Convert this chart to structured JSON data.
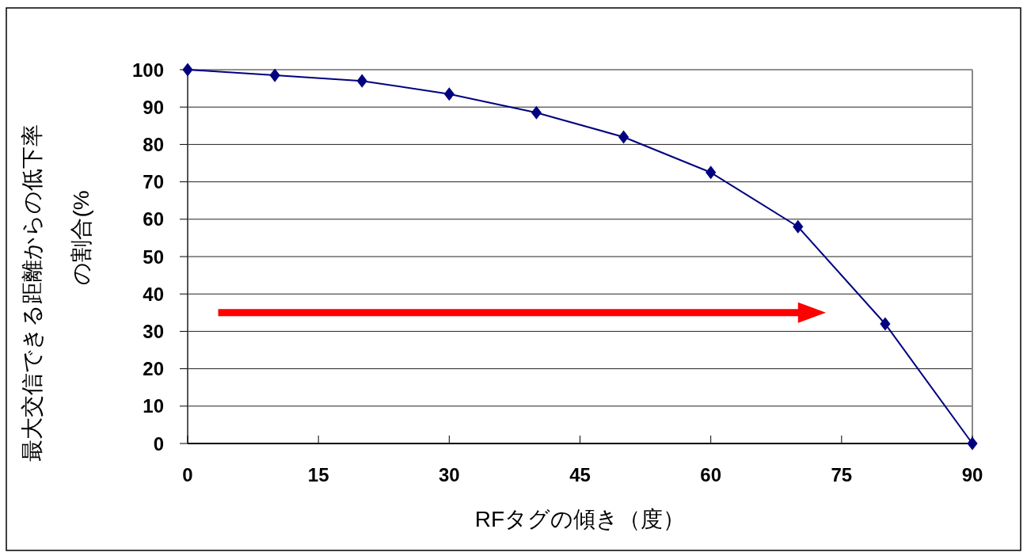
{
  "chart_data": {
    "type": "line",
    "xlabel": "RFタグの傾き（度）",
    "ylabel": "最大交信できる距離からの低下率の割合(%",
    "x": [
      0,
      10,
      20,
      30,
      40,
      50,
      60,
      70,
      80,
      90
    ],
    "series": [
      {
        "color": "#000080",
        "values": [
          100,
          98.5,
          97,
          93.5,
          88.5,
          82,
          72.5,
          58,
          32,
          0
        ]
      }
    ],
    "xlim": [
      0,
      90
    ],
    "xticks": [
      0,
      15,
      30,
      45,
      60,
      75,
      90
    ],
    "ylim": [
      0,
      100
    ],
    "yticks": [
      0,
      10,
      20,
      30,
      40,
      50,
      60,
      70,
      80,
      90,
      100
    ],
    "grid": "y",
    "marker": "diamond",
    "line_style": "solid"
  }
}
